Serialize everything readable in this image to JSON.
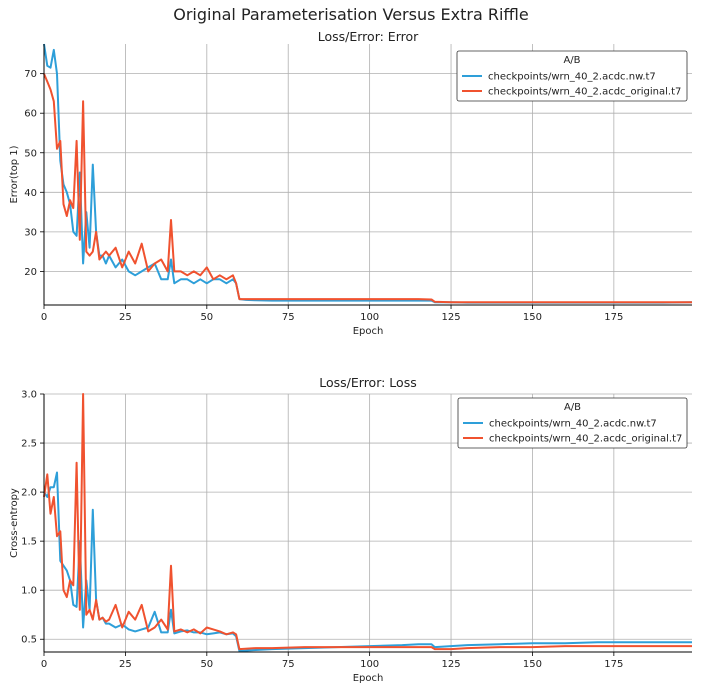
{
  "figure": {
    "suptitle": "Original Parameterisation Versus Extra Riffle"
  },
  "colors": {
    "nw": "#2e9fd9",
    "original": "#f0522f",
    "grid": "#b0b0b0",
    "axis": "#000000"
  },
  "chart_data": [
    {
      "type": "line",
      "title": "Loss/Error: Error",
      "xlabel": "Epoch",
      "ylabel": "Error(top 1)",
      "xlim": [
        0,
        199
      ],
      "ylim": [
        11.5,
        77.5
      ],
      "xticks": [
        0,
        25,
        50,
        75,
        100,
        125,
        150,
        175
      ],
      "yticks": [
        20,
        30,
        40,
        50,
        60,
        70
      ],
      "grid": true,
      "legend": {
        "title": "A/B",
        "placement": "top-right"
      },
      "series": [
        {
          "name": "checkpoints/wrn_40_2.acdc.nw.t7",
          "color": "#2e9fd9",
          "x": [
            0,
            1,
            2,
            3,
            4,
            5,
            6,
            7,
            8,
            9,
            10,
            11,
            12,
            13,
            14,
            15,
            16,
            17,
            18,
            19,
            20,
            22,
            24,
            26,
            28,
            30,
            32,
            34,
            36,
            38,
            39,
            40,
            42,
            44,
            46,
            48,
            50,
            52,
            54,
            56,
            58,
            59,
            60,
            62,
            65,
            70,
            75,
            80,
            85,
            90,
            95,
            100,
            105,
            110,
            115,
            119,
            120,
            125,
            130,
            140,
            150,
            160,
            170,
            180,
            190,
            199
          ],
          "y": [
            77.5,
            72,
            71.5,
            76,
            70,
            48,
            42,
            40,
            37,
            30,
            29,
            45,
            22,
            35,
            26,
            47,
            30,
            24,
            24,
            22,
            24,
            21,
            23,
            20,
            19,
            20,
            21,
            22,
            18,
            18,
            23,
            17,
            18,
            18,
            17,
            18,
            17,
            18,
            18,
            17,
            18,
            17,
            13,
            12.8,
            12.7,
            12.6,
            12.6,
            12.6,
            12.6,
            12.6,
            12.6,
            12.6,
            12.6,
            12.6,
            12.6,
            12.6,
            12.2,
            12.2,
            12.1,
            12.1,
            12.1,
            12.1,
            12.1,
            12.1,
            12.1,
            12.2
          ]
        },
        {
          "name": "checkpoints/wrn_40_2.acdc_original.t7",
          "color": "#f0522f",
          "x": [
            0,
            1,
            2,
            3,
            4,
            5,
            6,
            7,
            8,
            9,
            10,
            11,
            12,
            13,
            14,
            15,
            16,
            17,
            18,
            19,
            20,
            22,
            24,
            26,
            28,
            30,
            32,
            34,
            36,
            38,
            39,
            40,
            42,
            44,
            46,
            48,
            50,
            52,
            54,
            56,
            58,
            59,
            60,
            62,
            65,
            70,
            75,
            80,
            85,
            90,
            95,
            100,
            105,
            110,
            115,
            119,
            120,
            125,
            130,
            140,
            150,
            160,
            170,
            180,
            190,
            199
          ],
          "y": [
            70,
            68,
            66,
            63,
            51,
            53,
            37,
            34,
            38,
            36,
            53,
            28,
            63,
            25,
            24,
            25,
            30,
            23,
            24,
            25,
            24,
            26,
            21,
            25,
            22,
            27,
            20,
            22,
            23,
            20,
            33,
            20,
            20,
            19,
            20,
            19,
            21,
            18,
            19,
            18,
            19,
            17,
            13,
            13,
            13,
            13,
            13,
            13,
            13,
            13,
            13,
            13,
            13,
            13,
            13,
            12.9,
            12.3,
            12.2,
            12.2,
            12.2,
            12.2,
            12.2,
            12.2,
            12.2,
            12.2,
            12.2
          ]
        }
      ]
    },
    {
      "type": "line",
      "title": "Loss/Error: Loss",
      "xlabel": "Epoch",
      "ylabel": "Cross-entropy",
      "xlim": [
        0,
        199
      ],
      "ylim": [
        0.37,
        3.0
      ],
      "xticks": [
        0,
        25,
        50,
        75,
        100,
        125,
        150,
        175
      ],
      "yticks": [
        0.5,
        1.0,
        1.5,
        2.0,
        2.5,
        3.0
      ],
      "ytick_labels": [
        "0.5",
        "1.0",
        "1.5",
        "2.0",
        "2.5",
        "3.0"
      ],
      "grid": true,
      "legend": {
        "title": "A/B",
        "placement": "top-right"
      },
      "series": [
        {
          "name": "checkpoints/wrn_40_2.acdc.nw.t7",
          "color": "#2e9fd9",
          "x": [
            0,
            1,
            2,
            3,
            4,
            5,
            6,
            7,
            8,
            9,
            10,
            11,
            12,
            13,
            14,
            15,
            16,
            17,
            18,
            19,
            20,
            22,
            24,
            26,
            28,
            30,
            32,
            34,
            36,
            38,
            39,
            40,
            42,
            44,
            46,
            48,
            50,
            52,
            54,
            56,
            58,
            59,
            60,
            65,
            70,
            80,
            90,
            100,
            110,
            115,
            119,
            120,
            125,
            130,
            140,
            150,
            160,
            170,
            180,
            190,
            199
          ],
          "y": [
            2.0,
            1.95,
            2.05,
            2.05,
            2.2,
            1.3,
            1.25,
            1.2,
            1.1,
            0.85,
            0.83,
            1.5,
            0.62,
            1.1,
            0.8,
            1.82,
            0.9,
            0.7,
            0.72,
            0.66,
            0.66,
            0.62,
            0.65,
            0.6,
            0.58,
            0.6,
            0.62,
            0.78,
            0.57,
            0.57,
            0.8,
            0.56,
            0.58,
            0.59,
            0.57,
            0.57,
            0.55,
            0.56,
            0.57,
            0.55,
            0.56,
            0.53,
            0.38,
            0.39,
            0.4,
            0.41,
            0.42,
            0.43,
            0.44,
            0.45,
            0.45,
            0.42,
            0.43,
            0.44,
            0.45,
            0.46,
            0.46,
            0.47,
            0.47,
            0.47,
            0.47
          ]
        },
        {
          "name": "checkpoints/wrn_40_2.acdc_original.t7",
          "color": "#f0522f",
          "x": [
            0,
            1,
            2,
            3,
            4,
            5,
            6,
            7,
            8,
            9,
            10,
            11,
            12,
            13,
            14,
            15,
            16,
            17,
            18,
            19,
            20,
            22,
            24,
            26,
            28,
            30,
            32,
            34,
            36,
            38,
            39,
            40,
            42,
            44,
            46,
            48,
            50,
            52,
            54,
            56,
            58,
            59,
            60,
            65,
            70,
            80,
            90,
            100,
            110,
            115,
            119,
            120,
            125,
            130,
            140,
            150,
            160,
            170,
            180,
            190,
            199
          ],
          "y": [
            1.95,
            2.18,
            1.78,
            1.95,
            1.55,
            1.6,
            1.0,
            0.93,
            1.1,
            1.05,
            2.3,
            0.8,
            3.0,
            0.75,
            0.8,
            0.7,
            0.9,
            0.7,
            0.72,
            0.68,
            0.7,
            0.85,
            0.62,
            0.78,
            0.7,
            0.85,
            0.58,
            0.62,
            0.7,
            0.6,
            1.25,
            0.58,
            0.6,
            0.57,
            0.6,
            0.56,
            0.62,
            0.6,
            0.58,
            0.55,
            0.57,
            0.55,
            0.4,
            0.41,
            0.41,
            0.42,
            0.42,
            0.42,
            0.42,
            0.42,
            0.42,
            0.4,
            0.4,
            0.41,
            0.42,
            0.42,
            0.43,
            0.43,
            0.43,
            0.43,
            0.43
          ]
        }
      ]
    }
  ]
}
